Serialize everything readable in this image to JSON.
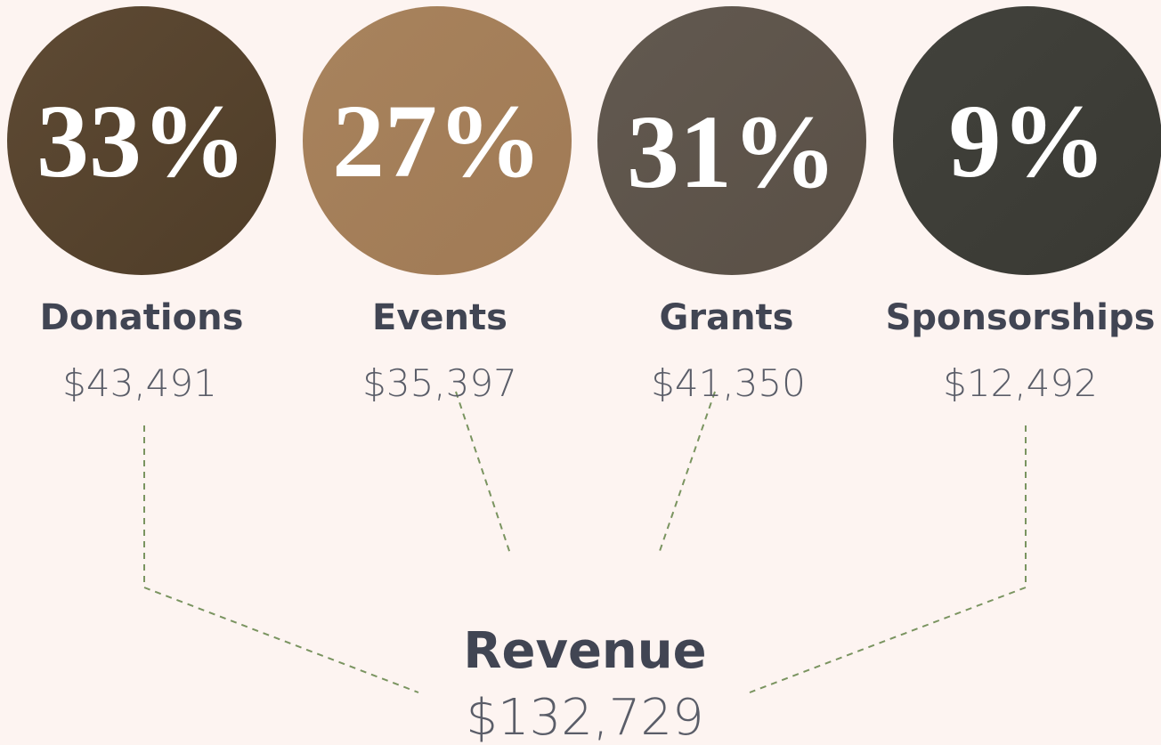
{
  "items": [
    {
      "percent": "33%",
      "label": "Donations",
      "amount": "$43,491"
    },
    {
      "percent": "27%",
      "label": "Events",
      "amount": "$35,397"
    },
    {
      "percent": "31%",
      "label": "Grants",
      "amount": "$41,350"
    },
    {
      "percent": "9%",
      "label": "Sponsorships",
      "amount": "$12,492"
    }
  ],
  "total": {
    "label": "Revenue",
    "amount": "$132,729"
  }
}
